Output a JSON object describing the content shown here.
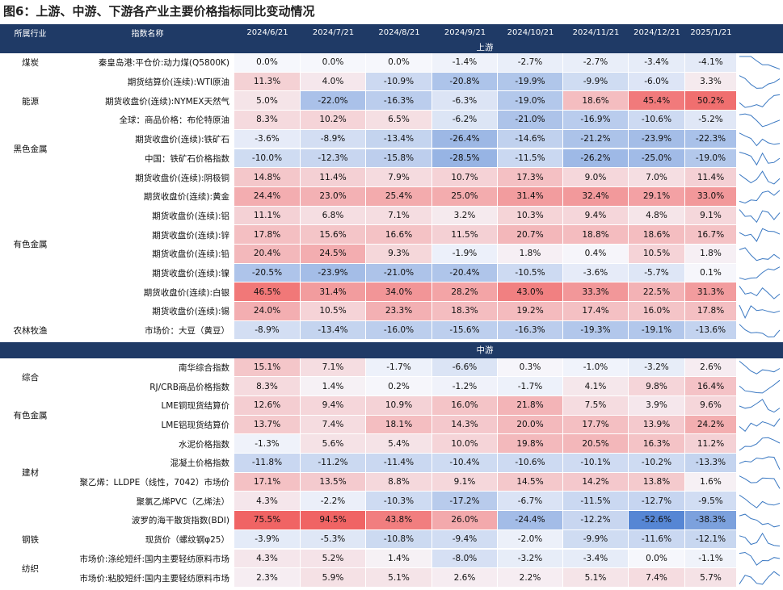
{
  "title": "图6：上游、中游、下游各产业主要价格指标同比变动情况",
  "header": {
    "category": "所属行业",
    "index": "指数名称",
    "dates": [
      "2024/6/21",
      "2024/7/21",
      "2024/8/21",
      "2024/9/21",
      "2024/10/21",
      "2024/11/21",
      "2024/12/21",
      "2025/1/21"
    ]
  },
  "sections": [
    {
      "name": "上游",
      "groups": [
        {
          "label": "煤炭",
          "rows": [
            {
              "name": "秦皇岛港:平仓价:动力煤(Q5800K)",
              "values": [
                "0.0%",
                "0.0%",
                "0.0%",
                "-1.4%",
                "-2.7%",
                "-2.7%",
                "-3.4%",
                "-4.1%"
              ]
            }
          ]
        },
        {
          "label": "能源",
          "rows": [
            {
              "name": "期货结算价(连续):WTI原油",
              "values": [
                "11.3%",
                "4.0%",
                "-10.9%",
                "-20.8%",
                "-19.9%",
                "-9.9%",
                "-6.0%",
                "3.3%"
              ]
            },
            {
              "name": "期货收盘价(连续):NYMEX天然气",
              "values": [
                "5.0%",
                "-22.0%",
                "-16.3%",
                "-6.3%",
                "-19.0%",
                "18.6%",
                "45.4%",
                "50.2%"
              ]
            },
            {
              "name": "全球：商品价格：布伦特原油",
              "values": [
                "8.3%",
                "10.2%",
                "6.5%",
                "-6.2%",
                "-21.0%",
                "-16.9%",
                "-10.6%",
                "-5.2%"
              ]
            }
          ]
        },
        {
          "label": "黑色金属",
          "rows": [
            {
              "name": "期货收盘价(连续):铁矿石",
              "values": [
                "-3.6%",
                "-8.9%",
                "-13.4%",
                "-26.4%",
                "-14.6%",
                "-21.2%",
                "-23.9%",
                "-22.3%"
              ]
            },
            {
              "name": "中国：铁矿石价格指数",
              "values": [
                "-10.0%",
                "-12.3%",
                "-15.8%",
                "-28.5%",
                "-11.5%",
                "-26.2%",
                "-25.0%",
                "-19.0%"
              ]
            }
          ]
        },
        {
          "label": "有色金属",
          "rows": [
            {
              "name": "期货收盘价(连续):阴极铜",
              "values": [
                "14.8%",
                "11.4%",
                "7.9%",
                "10.7%",
                "17.3%",
                "9.0%",
                "7.0%",
                "11.4%"
              ]
            },
            {
              "name": "期货收盘价(连续):黄金",
              "values": [
                "24.4%",
                "23.0%",
                "25.4%",
                "25.0%",
                "31.4%",
                "32.4%",
                "29.1%",
                "33.0%"
              ]
            },
            {
              "name": "期货收盘价(连续):铝",
              "values": [
                "11.1%",
                "6.8%",
                "7.1%",
                "3.2%",
                "10.3%",
                "9.4%",
                "4.8%",
                "9.1%"
              ]
            },
            {
              "name": "期货收盘价(连续):锌",
              "values": [
                "17.8%",
                "15.6%",
                "16.6%",
                "11.5%",
                "20.7%",
                "18.8%",
                "18.6%",
                "16.7%"
              ]
            },
            {
              "name": "期货收盘价(连续):铅",
              "values": [
                "20.4%",
                "24.5%",
                "9.3%",
                "-1.9%",
                "1.8%",
                "0.4%",
                "10.5%",
                "1.8%"
              ]
            },
            {
              "name": "期货收盘价(连续):镍",
              "values": [
                "-20.5%",
                "-23.9%",
                "-21.0%",
                "-20.4%",
                "-10.5%",
                "-3.6%",
                "-5.7%",
                "0.1%"
              ]
            },
            {
              "name": "期货收盘价(连续):白银",
              "values": [
                "46.5%",
                "31.4%",
                "34.0%",
                "28.2%",
                "43.0%",
                "33.3%",
                "22.5%",
                "31.3%"
              ]
            },
            {
              "name": "期货收盘价(连续):锡",
              "values": [
                "24.0%",
                "10.5%",
                "23.3%",
                "18.3%",
                "19.2%",
                "17.4%",
                "16.0%",
                "17.8%"
              ]
            }
          ]
        },
        {
          "label": "农林牧渔",
          "rows": [
            {
              "name": "市场价：大豆（黄豆）",
              "values": [
                "-8.9%",
                "-13.4%",
                "-16.0%",
                "-15.6%",
                "-16.3%",
                "-19.3%",
                "-19.1%",
                "-13.6%"
              ]
            }
          ]
        }
      ]
    },
    {
      "name": "中游",
      "groups": [
        {
          "label": "综合",
          "rows": [
            {
              "name": "南华综合指数",
              "values": [
                "15.1%",
                "7.1%",
                "-1.7%",
                "-6.6%",
                "0.3%",
                "-1.0%",
                "-3.2%",
                "2.6%"
              ]
            },
            {
              "name": "RJ/CRB商品价格指数",
              "values": [
                "8.3%",
                "1.4%",
                "0.2%",
                "-1.2%",
                "-1.7%",
                "4.1%",
                "9.8%",
                "16.4%"
              ]
            }
          ]
        },
        {
          "label": "有色金属",
          "rows": [
            {
              "name": "LME铜现货结算价",
              "values": [
                "12.6%",
                "9.4%",
                "10.9%",
                "16.0%",
                "21.8%",
                "7.5%",
                "3.9%",
                "9.6%"
              ]
            },
            {
              "name": "LME铝现货结算价",
              "values": [
                "13.7%",
                "7.4%",
                "18.1%",
                "14.3%",
                "20.0%",
                "17.7%",
                "13.9%",
                "24.2%"
              ]
            }
          ]
        },
        {
          "label": "建材",
          "rows": [
            {
              "name": "水泥价格指数",
              "values": [
                "-1.3%",
                "5.6%",
                "5.4%",
                "10.0%",
                "19.8%",
                "20.5%",
                "16.3%",
                "11.2%"
              ]
            },
            {
              "name": "混凝土价格指数",
              "values": [
                "-11.8%",
                "-11.2%",
                "-11.4%",
                "-10.4%",
                "-10.6%",
                "-10.1%",
                "-10.2%",
                "-13.3%"
              ]
            },
            {
              "name": "聚乙烯：LLDPE（线性，7042）市场价",
              "values": [
                "17.1%",
                "13.5%",
                "8.8%",
                "9.1%",
                "14.5%",
                "14.2%",
                "13.8%",
                "1.6%"
              ]
            },
            {
              "name": "聚氯乙烯PVC（乙烯法）",
              "values": [
                "4.3%",
                "-2.2%",
                "-10.3%",
                "-17.2%",
                "-6.7%",
                "-11.5%",
                "-12.7%",
                "-9.5%"
              ]
            }
          ]
        },
        {
          "label": null,
          "rows": [
            {
              "name": "波罗的海干散货指数(BDI)",
              "values": [
                "75.5%",
                "94.5%",
                "43.8%",
                "26.0%",
                "-24.4%",
                "-12.2%",
                "-52.6%",
                "-38.3%"
              ]
            }
          ]
        },
        {
          "label": "钢铁",
          "rows": [
            {
              "name": "现货价（螺纹钢φ25）",
              "values": [
                "-3.9%",
                "-5.3%",
                "-10.8%",
                "-9.4%",
                "-2.0%",
                "-9.9%",
                "-11.6%",
                "-12.1%"
              ]
            }
          ]
        },
        {
          "label": "纺织",
          "rows": [
            {
              "name": "市场价:涤纶短纤:国内主要轻纺原料市场",
              "values": [
                "4.3%",
                "5.2%",
                "1.4%",
                "-8.0%",
                "-3.2%",
                "-3.4%",
                "0.0%",
                "-1.1%"
              ]
            },
            {
              "name": "市场价:粘胶短纤:国内主要轻纺原料市场",
              "values": [
                "2.3%",
                "5.9%",
                "5.1%",
                "2.6%",
                "2.2%",
                "5.1%",
                "7.4%",
                "5.7%"
              ]
            }
          ]
        }
      ]
    }
  ]
}
